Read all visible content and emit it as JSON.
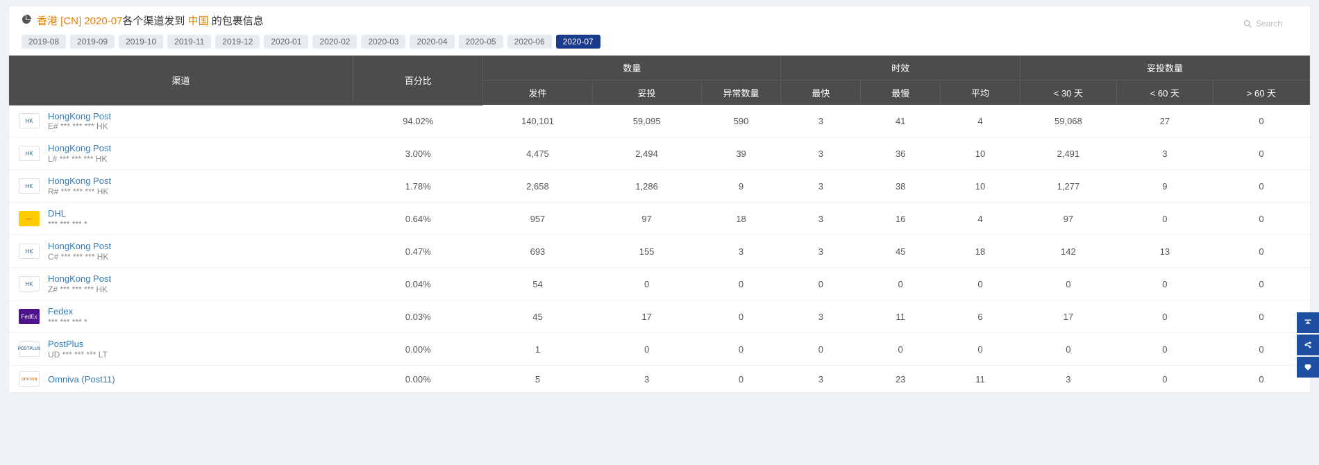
{
  "title": {
    "prefix": "香港 [CN] 2020-07",
    "mid": "各个渠道发到 ",
    "dest": "中国",
    "suffix": " 的包裹信息"
  },
  "search_placeholder": "Search",
  "months": [
    {
      "label": "2019-08",
      "active": false
    },
    {
      "label": "2019-09",
      "active": false
    },
    {
      "label": "2019-10",
      "active": false
    },
    {
      "label": "2019-11",
      "active": false
    },
    {
      "label": "2019-12",
      "active": false
    },
    {
      "label": "2020-01",
      "active": false
    },
    {
      "label": "2020-02",
      "active": false
    },
    {
      "label": "2020-03",
      "active": false
    },
    {
      "label": "2020-04",
      "active": false
    },
    {
      "label": "2020-05",
      "active": false
    },
    {
      "label": "2020-06",
      "active": false
    },
    {
      "label": "2020-07",
      "active": true
    }
  ],
  "header": {
    "channel": "渠道",
    "pct": "百分比",
    "qty_group": "数量",
    "time_group": "时效",
    "deliv_group": "妥投数量",
    "sent": "发件",
    "delivered": "妥投",
    "abnormal": "异常数量",
    "fast": "最快",
    "slow": "最慢",
    "avg": "平均",
    "lt30": "< 30 天",
    "lt60": "< 60 天",
    "gt60": "> 60 天"
  },
  "rows": [
    {
      "logo": "hkpost",
      "name": "HongKong Post",
      "sub": "E# *** *** *** HK",
      "pct": "94.02%",
      "sent": "140,101",
      "del": "59,095",
      "abn": "590",
      "fast": "3",
      "slow": "41",
      "avg": "4",
      "d30": "59,068",
      "d60": "27",
      "d60p": "0"
    },
    {
      "logo": "hkpost",
      "name": "HongKong Post",
      "sub": "L# *** *** *** HK",
      "pct": "3.00%",
      "sent": "4,475",
      "del": "2,494",
      "abn": "39",
      "fast": "3",
      "slow": "36",
      "avg": "10",
      "d30": "2,491",
      "d60": "3",
      "d60p": "0"
    },
    {
      "logo": "hkpost",
      "name": "HongKong Post",
      "sub": "R# *** *** *** HK",
      "pct": "1.78%",
      "sent": "2,658",
      "del": "1,286",
      "abn": "9",
      "fast": "3",
      "slow": "38",
      "avg": "10",
      "d30": "1,277",
      "d60": "9",
      "d60p": "0"
    },
    {
      "logo": "dhl",
      "name": "DHL",
      "sub": "*** *** *** *",
      "pct": "0.64%",
      "sent": "957",
      "del": "97",
      "abn": "18",
      "fast": "3",
      "slow": "16",
      "avg": "4",
      "d30": "97",
      "d60": "0",
      "d60p": "0"
    },
    {
      "logo": "hkpost",
      "name": "HongKong Post",
      "sub": "C# *** *** *** HK",
      "pct": "0.47%",
      "sent": "693",
      "del": "155",
      "abn": "3",
      "fast": "3",
      "slow": "45",
      "avg": "18",
      "d30": "142",
      "d60": "13",
      "d60p": "0"
    },
    {
      "logo": "hkpost",
      "name": "HongKong Post",
      "sub": "Z# *** *** *** HK",
      "pct": "0.04%",
      "sent": "54",
      "del": "0",
      "abn": "0",
      "fast": "0",
      "slow": "0",
      "avg": "0",
      "d30": "0",
      "d60": "0",
      "d60p": "0"
    },
    {
      "logo": "fedex",
      "name": "Fedex",
      "sub": "*** *** *** *",
      "pct": "0.03%",
      "sent": "45",
      "del": "17",
      "abn": "0",
      "fast": "3",
      "slow": "11",
      "avg": "6",
      "d30": "17",
      "d60": "0",
      "d60p": "0"
    },
    {
      "logo": "postplus",
      "name": "PostPlus",
      "sub": "UD *** *** *** LT",
      "pct": "0.00%",
      "sent": "1",
      "del": "0",
      "abn": "0",
      "fast": "0",
      "slow": "0",
      "avg": "0",
      "d30": "0",
      "d60": "0",
      "d60p": "0"
    },
    {
      "logo": "omniva",
      "name": "Omniva (Post11)",
      "sub": "",
      "pct": "0.00%",
      "sent": "5",
      "del": "3",
      "abn": "0",
      "fast": "3",
      "slow": "23",
      "avg": "11",
      "d30": "3",
      "d60": "0",
      "d60p": "0"
    }
  ],
  "logo_text": {
    "hkpost": "HK",
    "dhl": "—",
    "fedex": "FedEx",
    "postplus": "POSTPLUS",
    "omniva": "omniva"
  },
  "colors": {
    "active_month_bg": "#1a3b8b",
    "orange": "#e87e04",
    "thead_bg": "#4c4c4c",
    "link": "#337ab7",
    "side_btn": "#1e4fa0"
  }
}
